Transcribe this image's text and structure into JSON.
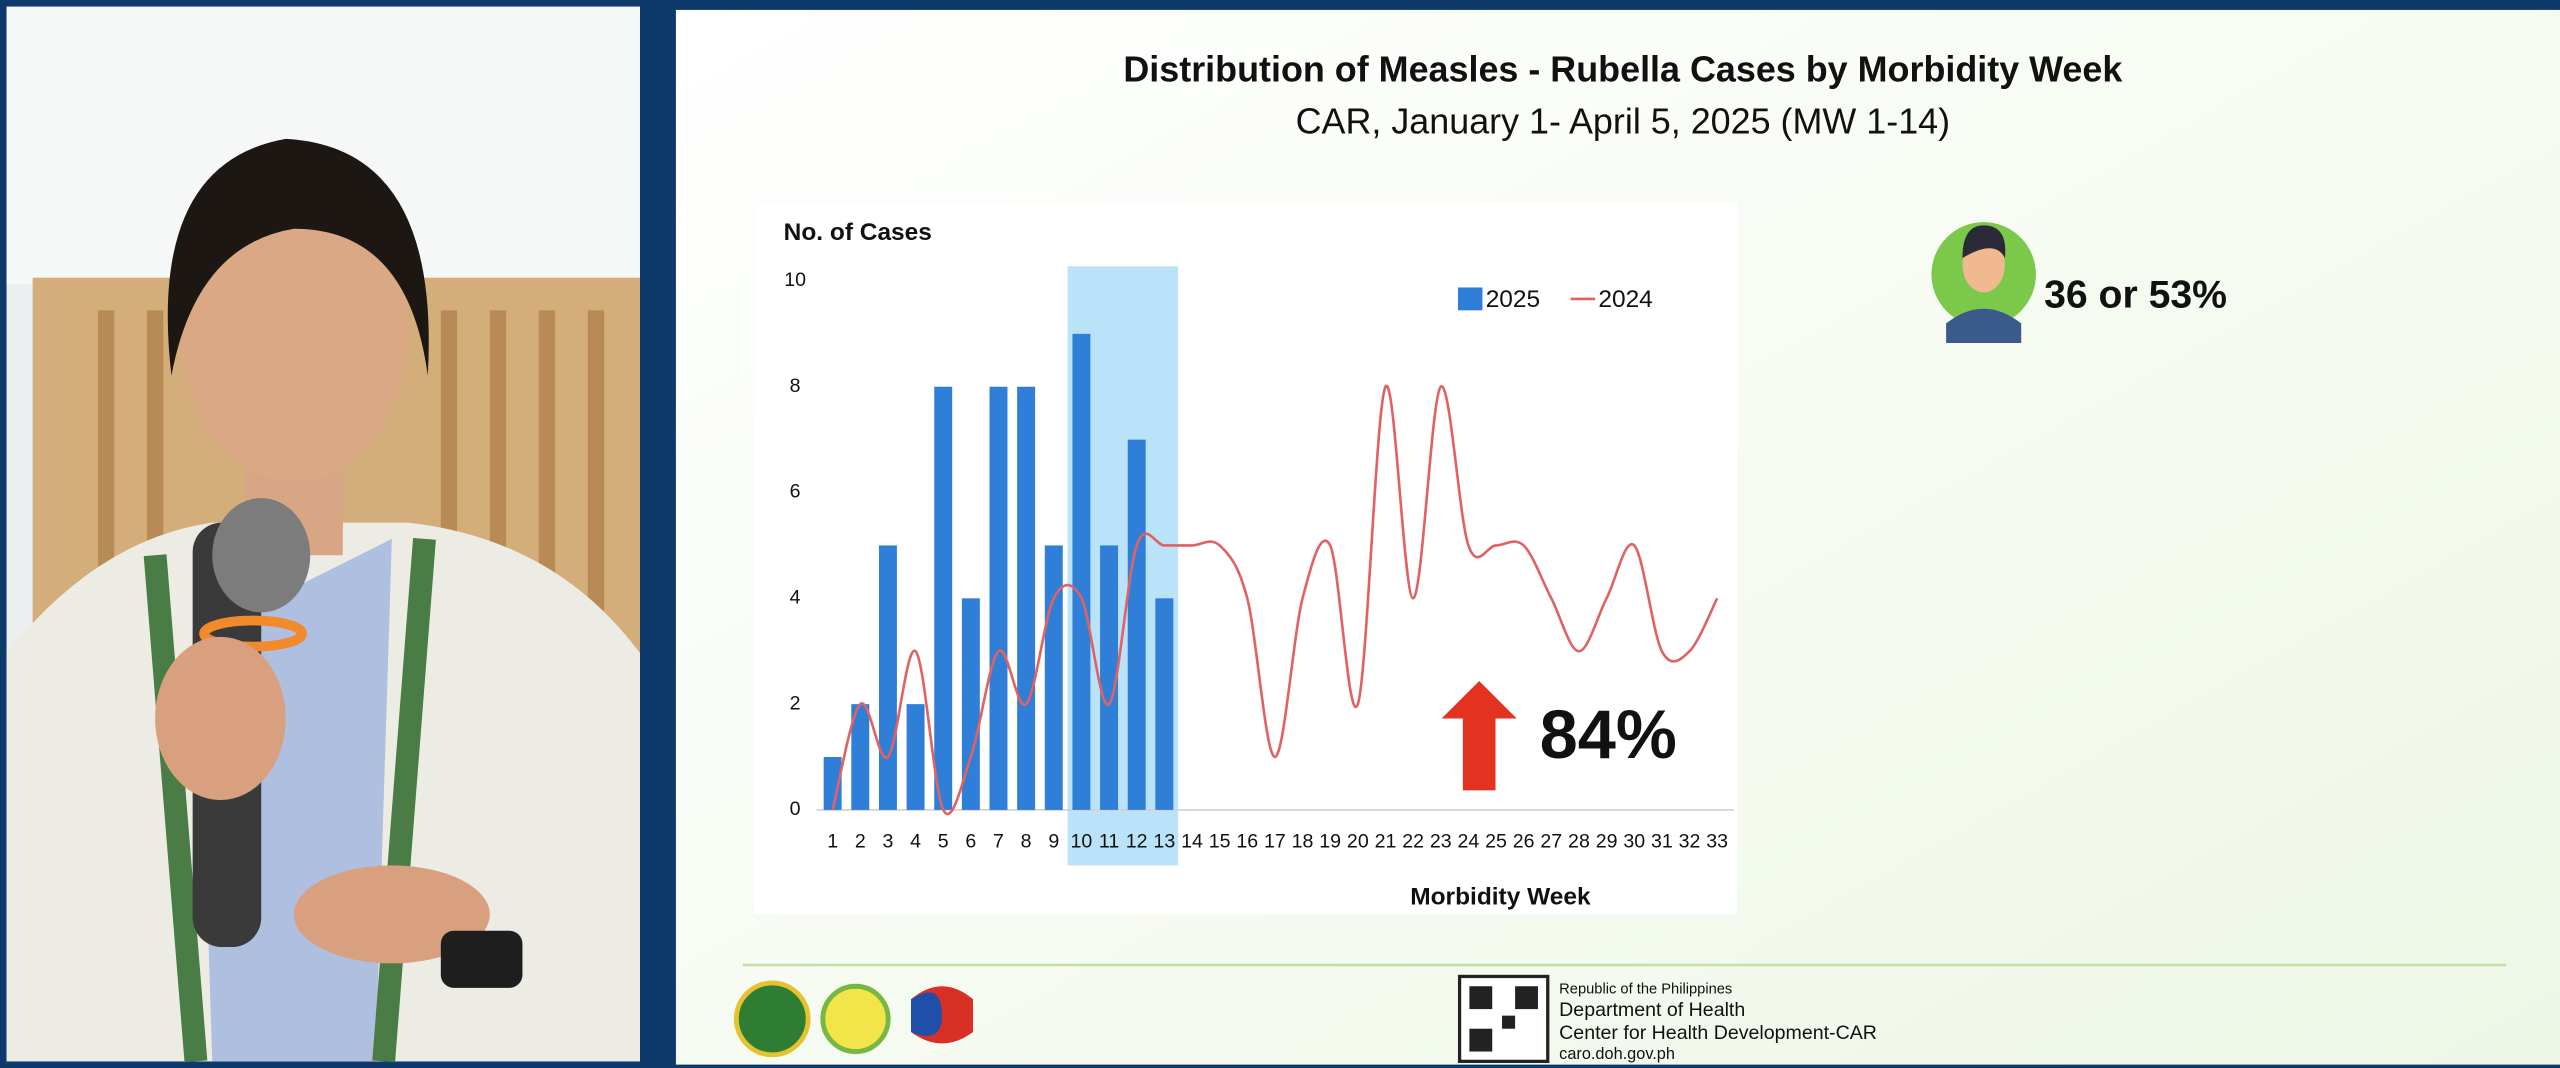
{
  "chart_data": {
    "type": "bar",
    "title": "Distribution of Measles - Rubella Cases by Morbidity Week",
    "subtitle": "CAR, January 1- April 5, 2025 (MW 1-14)",
    "y_label": "No. of Cases",
    "x_label": "Morbidity Week",
    "categories": [
      1,
      2,
      3,
      4,
      5,
      6,
      7,
      8,
      9,
      10,
      11,
      12,
      13,
      14,
      15,
      16,
      17,
      18,
      19,
      20,
      21,
      22,
      23,
      24,
      25,
      26,
      27,
      28,
      29,
      30,
      31,
      32,
      33
    ],
    "ylim": [
      0,
      10
    ],
    "yticks": [
      0,
      2,
      4,
      6,
      8,
      10
    ],
    "legend": true,
    "highlight_categories": [
      10,
      13
    ],
    "highlight_color": "#a9dcf7",
    "series": [
      {
        "name": "2025",
        "type": "bar",
        "color": "#2f7ed8",
        "values": [
          1,
          2,
          5,
          2,
          8,
          4,
          8,
          8,
          5,
          9,
          5,
          7,
          4,
          null,
          null,
          null,
          null,
          null,
          null,
          null,
          null,
          null,
          null,
          null,
          null,
          null,
          null,
          null,
          null,
          null,
          null,
          null,
          null
        ]
      },
      {
        "name": "2024",
        "type": "line",
        "color": "#e06262",
        "values": [
          0,
          2,
          1,
          3,
          0,
          1,
          3,
          2,
          4,
          4,
          2,
          5,
          5,
          5,
          5,
          4,
          1,
          4,
          5,
          2,
          8,
          4,
          8,
          5,
          5,
          5,
          4,
          3,
          4,
          5,
          3,
          3,
          4
        ]
      }
    ],
    "annotation": "84%",
    "annotation_color": "#e3321f"
  },
  "stat": "36 or 53%",
  "footer": [
    "Republic of the Philippines",
    "Department of Health",
    "Center for Health Development-CAR",
    "caro.doh.gov.ph"
  ]
}
